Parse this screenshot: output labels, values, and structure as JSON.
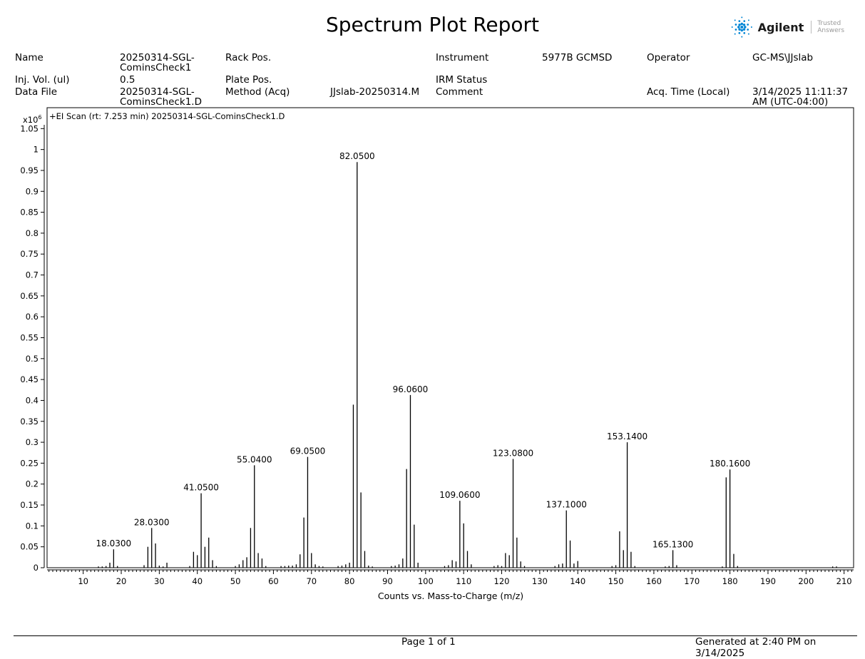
{
  "report": {
    "title": "Spectrum Plot Report",
    "logo": {
      "name": "Agilent",
      "tagline": "Trusted Answers",
      "color": "#0085d5"
    }
  },
  "meta": {
    "name_label": "Name",
    "name_value": "20250314-SGL-\nCominsCheck1",
    "rack_label": "Rack Pos.",
    "rack_value": "",
    "instrument_label": "Instrument",
    "instrument_value": "5977B GCMSD",
    "operator_label": "Operator",
    "operator_value": "GC-MS\\JJslab",
    "injvol_label": "Inj. Vol. (ul)",
    "injvol_value": "0.5",
    "plate_label": "Plate Pos.",
    "plate_value": "",
    "irm_label": "IRM Status",
    "irm_value": "",
    "datafile_label": "Data File",
    "datafile_value": "20250314-SGL-\nCominsCheck1.D",
    "method_label": "Method (Acq)",
    "method_value": "JJslab-20250314.M",
    "comment_label": "Comment",
    "comment_value": "",
    "acqtime_label": "Acq. Time (Local)",
    "acqtime_value": "3/14/2025 11:11:37\nAM (UTC-04:00)"
  },
  "chart_data": {
    "type": "bar",
    "title": "+EI Scan (rt: 7.253 min) 20250314-SGL-CominsCheck1.D",
    "xlabel": "Counts vs. Mass-to-Charge (m/z)",
    "ylabel": "",
    "y_multiplier": "x10",
    "y_exponent": "6",
    "xlim": [
      0.5,
      212.5
    ],
    "ylim": [
      0,
      1.1
    ],
    "x_ticks": [
      10,
      20,
      30,
      40,
      50,
      60,
      70,
      80,
      90,
      100,
      110,
      120,
      130,
      140,
      150,
      160,
      170,
      180,
      190,
      200,
      210
    ],
    "y_ticks": [
      0,
      0.05,
      0.1,
      0.15,
      0.2,
      0.25,
      0.3,
      0.35,
      0.4,
      0.45,
      0.5,
      0.55,
      0.6,
      0.65,
      0.7,
      0.75,
      0.8,
      0.85,
      0.9,
      0.95,
      1,
      1.05
    ],
    "y_tick_labels": [
      "0",
      "0.05",
      "0.1",
      "0.15",
      "0.2",
      "0.25",
      "0.3",
      "0.35",
      "0.4",
      "0.45",
      "0.5",
      "0.55",
      "0.6",
      "0.65",
      "0.7",
      "0.75",
      "0.8",
      "0.85",
      "0.9",
      "0.95",
      "1",
      "1.05"
    ],
    "x": [
      14,
      15,
      16,
      17,
      18,
      19,
      26,
      27,
      28,
      29,
      30,
      31,
      32,
      38,
      39,
      40,
      41,
      42,
      43,
      44,
      45,
      50,
      51,
      52,
      53,
      54,
      55,
      56,
      57,
      58,
      62,
      63,
      64,
      65,
      66,
      67,
      68,
      69,
      70,
      71,
      72,
      73,
      77,
      78,
      79,
      80,
      81,
      82,
      83,
      84,
      85,
      86,
      91,
      92,
      93,
      94,
      95,
      96,
      97,
      98,
      105,
      106,
      107,
      108,
      109,
      110,
      111,
      112,
      118,
      119,
      120,
      121,
      122,
      123,
      124,
      125,
      126,
      134,
      135,
      136,
      137,
      138,
      139,
      140,
      149,
      150,
      151,
      152,
      153,
      154,
      155,
      163,
      164,
      165,
      166,
      178,
      179,
      180,
      181,
      182,
      207,
      208
    ],
    "y": [
      0.003,
      0.003,
      0.004,
      0.012,
      0.044,
      0.004,
      0.006,
      0.05,
      0.095,
      0.058,
      0.005,
      0.003,
      0.012,
      0.004,
      0.038,
      0.03,
      0.178,
      0.05,
      0.072,
      0.018,
      0.004,
      0.004,
      0.008,
      0.018,
      0.025,
      0.095,
      0.245,
      0.035,
      0.022,
      0.004,
      0.004,
      0.004,
      0.005,
      0.005,
      0.008,
      0.032,
      0.12,
      0.265,
      0.035,
      0.008,
      0.004,
      0.003,
      0.004,
      0.005,
      0.008,
      0.012,
      0.39,
      0.97,
      0.18,
      0.04,
      0.005,
      0.003,
      0.004,
      0.005,
      0.008,
      0.022,
      0.236,
      0.413,
      0.103,
      0.012,
      0.004,
      0.006,
      0.018,
      0.015,
      0.16,
      0.106,
      0.04,
      0.008,
      0.004,
      0.006,
      0.004,
      0.035,
      0.03,
      0.26,
      0.072,
      0.015,
      0.004,
      0.004,
      0.008,
      0.01,
      0.137,
      0.065,
      0.01,
      0.016,
      0.004,
      0.006,
      0.087,
      0.042,
      0.3,
      0.038,
      0.004,
      0.003,
      0.004,
      0.042,
      0.006,
      0.003,
      0.216,
      0.235,
      0.033,
      0.004,
      0.003,
      0.003
    ],
    "peak_labels": [
      {
        "mz": 18,
        "text": "18.0300"
      },
      {
        "mz": 28,
        "text": "28.0300"
      },
      {
        "mz": 41,
        "text": "41.0500"
      },
      {
        "mz": 55,
        "text": "55.0400"
      },
      {
        "mz": 69,
        "text": "69.0500"
      },
      {
        "mz": 82,
        "text": "82.0500"
      },
      {
        "mz": 96,
        "text": "96.0600"
      },
      {
        "mz": 109,
        "text": "109.0600"
      },
      {
        "mz": 123,
        "text": "123.0800"
      },
      {
        "mz": 137,
        "text": "137.1000"
      },
      {
        "mz": 153,
        "text": "153.1400"
      },
      {
        "mz": 165,
        "text": "165.1300"
      },
      {
        "mz": 180,
        "text": "180.1600"
      }
    ]
  },
  "footer": {
    "page_text": "Page 1 of  1",
    "generated_text": "Generated at 2:40 PM on 3/14/2025"
  }
}
